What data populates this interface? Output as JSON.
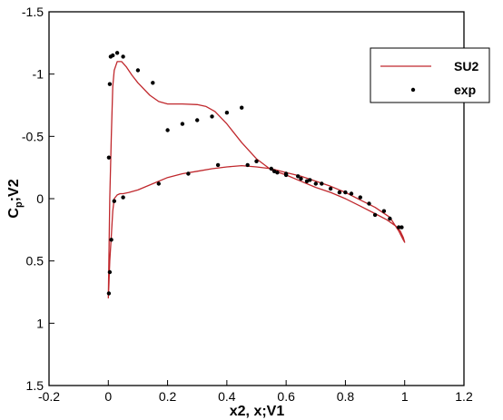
{
  "chart_data": {
    "type": "line",
    "xlabel": "x2, x;V1",
    "ylabel_main": "C",
    "ylabel_sub": "p",
    "ylabel_rest": ";V2",
    "xlim": [
      -0.2,
      1.2
    ],
    "ylim": [
      -1.5,
      1.5
    ],
    "y_inverted": true,
    "grid": false,
    "legend_position": "top-right",
    "x_ticks": [
      -0.2,
      0,
      0.2,
      0.4,
      0.6,
      0.8,
      1,
      1.2
    ],
    "x_tick_labels": [
      "-0.2",
      "0",
      "0.2",
      "0.4",
      "0.6",
      "0.8",
      "1",
      "1.2"
    ],
    "y_ticks": [
      -1.5,
      -1,
      -0.5,
      0,
      0.5,
      1,
      1.5
    ],
    "y_tick_labels": [
      "-1.5",
      "-1",
      "-0.5",
      "0",
      "0.5",
      "1",
      "1.5"
    ],
    "series": [
      {
        "name": "SU2",
        "style": "line",
        "color": "#c0282d",
        "x": [
          0.0,
          0.002,
          0.005,
          0.01,
          0.015,
          0.02,
          0.03,
          0.045,
          0.06,
          0.08,
          0.1,
          0.14,
          0.17,
          0.2,
          0.25,
          0.3,
          0.33,
          0.36,
          0.4,
          0.45,
          0.5,
          0.55,
          0.6,
          0.65,
          0.7,
          0.75,
          0.8,
          0.85,
          0.9,
          0.94,
          0.97,
          0.985,
          0.995,
          1.0,
          0.995,
          0.98,
          0.95,
          0.9,
          0.85,
          0.8,
          0.75,
          0.7,
          0.65,
          0.6,
          0.55,
          0.5,
          0.45,
          0.4,
          0.35,
          0.3,
          0.25,
          0.2,
          0.15,
          0.1,
          0.07,
          0.05,
          0.04,
          0.03,
          0.02,
          0.015,
          0.01,
          0.005,
          0.002,
          0.0
        ],
        "y": [
          0.8,
          0.5,
          0.0,
          -0.5,
          -0.9,
          -1.03,
          -1.1,
          -1.1,
          -1.06,
          -0.99,
          -0.93,
          -0.83,
          -0.78,
          -0.76,
          -0.76,
          -0.755,
          -0.74,
          -0.7,
          -0.6,
          -0.45,
          -0.32,
          -0.23,
          -0.19,
          -0.14,
          -0.09,
          -0.05,
          0.0,
          0.06,
          0.12,
          0.17,
          0.22,
          0.26,
          0.31,
          0.35,
          0.33,
          0.26,
          0.15,
          0.07,
          0.01,
          -0.05,
          -0.1,
          -0.14,
          -0.18,
          -0.21,
          -0.24,
          -0.255,
          -0.265,
          -0.255,
          -0.24,
          -0.22,
          -0.2,
          -0.17,
          -0.12,
          -0.07,
          -0.05,
          -0.04,
          -0.04,
          -0.03,
          0.0,
          0.1,
          0.3,
          0.5,
          0.7,
          0.8
        ]
      },
      {
        "name": "exp",
        "style": "scatter",
        "color": "#000000",
        "x": [
          0.002,
          0.005,
          0.008,
          0.015,
          0.03,
          0.05,
          0.1,
          0.15,
          0.2,
          0.25,
          0.3,
          0.35,
          0.4,
          0.45,
          0.5,
          0.55,
          0.57,
          0.6,
          0.65,
          0.67,
          0.7,
          0.75,
          0.8,
          0.85,
          0.9,
          0.95,
          0.99,
          0.98,
          0.93,
          0.88,
          0.82,
          0.78,
          0.72,
          0.68,
          0.64,
          0.6,
          0.56,
          0.47,
          0.37,
          0.27,
          0.17,
          0.05,
          0.02,
          0.01,
          0.005,
          0.002
        ],
        "y": [
          -0.33,
          -0.92,
          -1.14,
          -1.15,
          -1.17,
          -1.14,
          -1.03,
          -0.93,
          -0.55,
          -0.6,
          -0.63,
          -0.66,
          -0.69,
          -0.73,
          -0.3,
          -0.24,
          -0.21,
          -0.19,
          -0.16,
          -0.14,
          -0.12,
          -0.08,
          -0.05,
          -0.01,
          0.13,
          0.16,
          0.23,
          0.23,
          0.1,
          0.04,
          -0.04,
          -0.05,
          -0.12,
          -0.15,
          -0.18,
          -0.2,
          -0.22,
          -0.27,
          -0.27,
          -0.2,
          -0.12,
          -0.01,
          0.02,
          0.33,
          0.59,
          0.76
        ]
      }
    ]
  }
}
